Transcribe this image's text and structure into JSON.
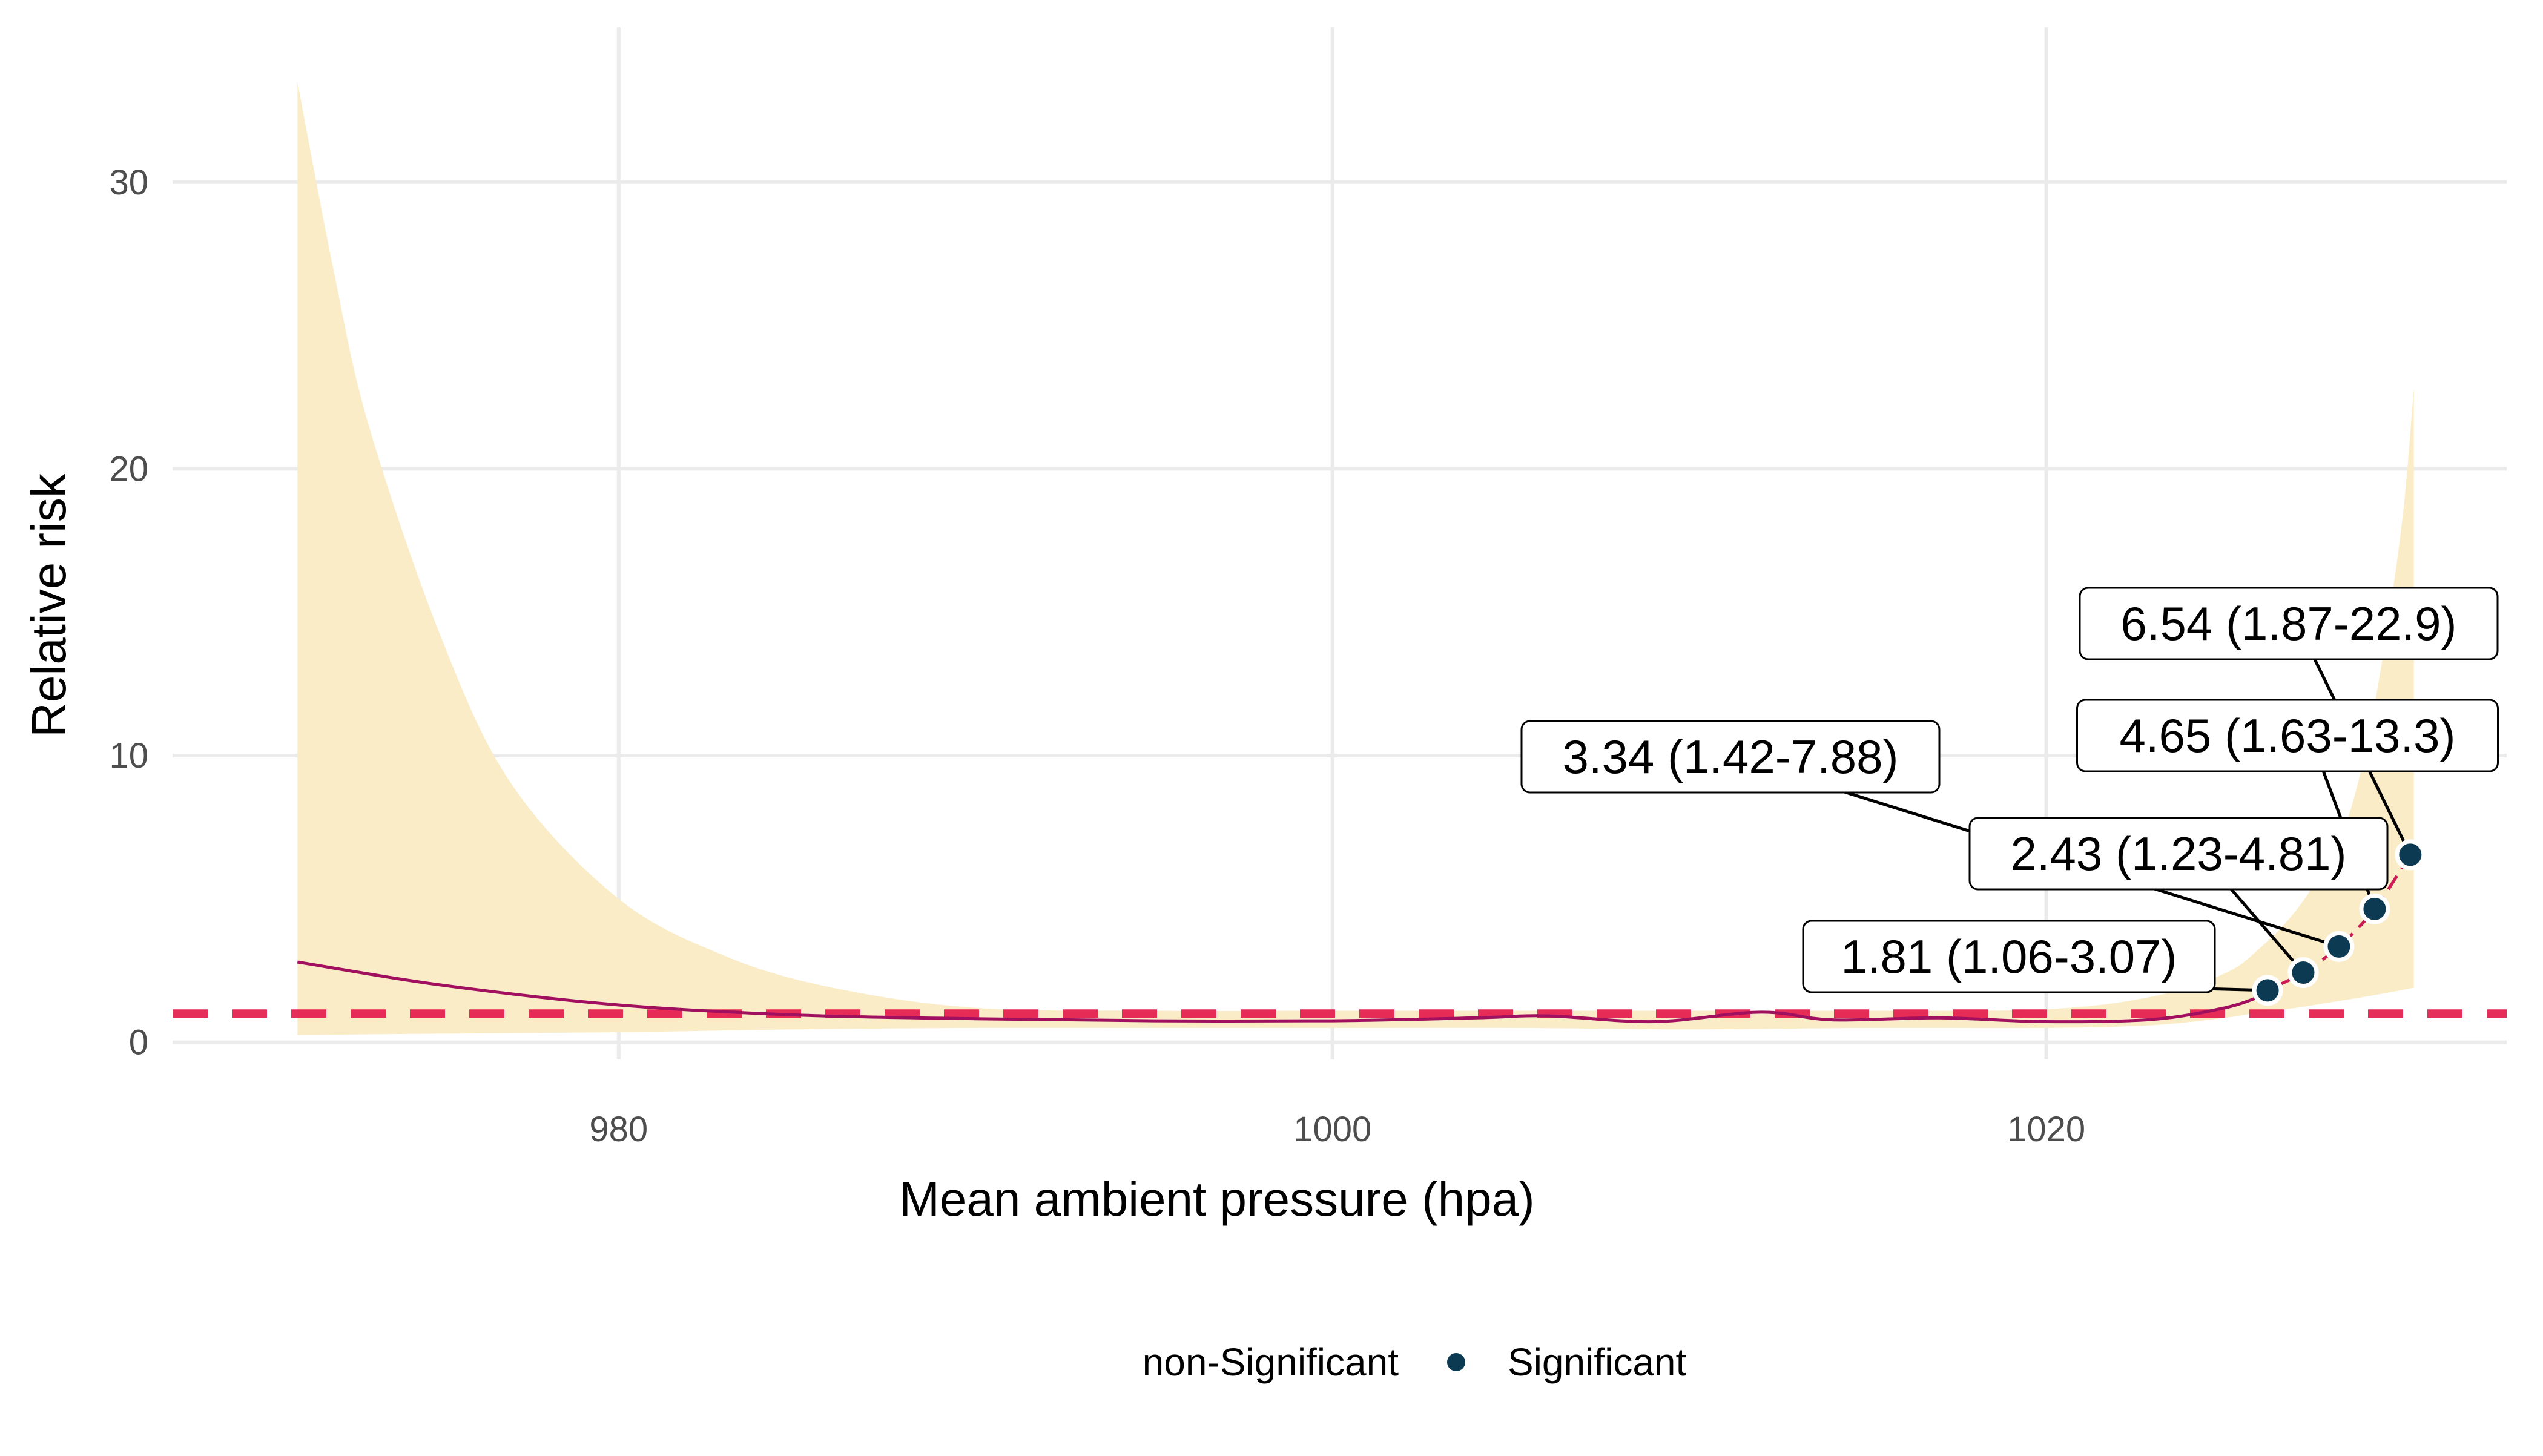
{
  "chart_data": {
    "type": "line",
    "title": "",
    "xlabel": "Mean ambient pressure (hpa)",
    "ylabel": "Relative risk",
    "xlim": [
      967.5,
      1032.9
    ],
    "ylim": [
      -0.6,
      35.4
    ],
    "x_ticks": [
      980,
      1000,
      1020
    ],
    "y_ticks": [
      0,
      10,
      20,
      30
    ],
    "grid": true,
    "reference_line": {
      "y": 1,
      "style": "dashed",
      "color": "#e4184a"
    },
    "colors": {
      "curve_nonsignificant": "#a0105f",
      "curve_significant": "#cc1a55",
      "ci_band": "#f9ecc7",
      "point": "#0b3a52",
      "grid": "#ebebeb"
    },
    "legend": {
      "placement": "bottom",
      "entries": [
        {
          "label": "non-Significant",
          "marker": false
        },
        {
          "label": "Significant",
          "marker": true
        }
      ]
    },
    "series": [
      {
        "role": "relative-risk-curve",
        "x": [
          971,
          975,
          980,
          985,
          990,
          995,
          1000,
          1004,
          1006,
          1009,
          1012,
          1014,
          1017,
          1020,
          1023,
          1025,
          1026
        ],
        "y": [
          2.8,
          2.0,
          1.3,
          0.95,
          0.82,
          0.75,
          0.75,
          0.85,
          0.92,
          0.72,
          1.05,
          0.78,
          0.85,
          0.72,
          0.8,
          1.2,
          1.6
        ]
      },
      {
        "role": "ci-upper",
        "x": [
          971,
          972,
          973,
          975,
          977,
          980,
          983,
          986,
          990,
          995,
          1000,
          1005,
          1010,
          1015,
          1020,
          1023,
          1025,
          1026,
          1027,
          1028,
          1028.5,
          1029,
          1029.5,
          1030,
          1030.3
        ],
        "y": [
          33.5,
          27,
          21.5,
          14.2,
          9.0,
          5.0,
          3.0,
          1.9,
          1.2,
          1.1,
          1.1,
          1.1,
          1.1,
          1.1,
          1.15,
          1.6,
          2.4,
          3.3,
          4.6,
          6.5,
          8.0,
          10.5,
          14.0,
          18.5,
          22.8
        ]
      },
      {
        "role": "ci-lower",
        "x": [
          971,
          975,
          980,
          985,
          990,
          995,
          1000,
          1005,
          1010,
          1015,
          1020,
          1023,
          1025,
          1026,
          1027,
          1028,
          1029,
          1030.3
        ],
        "y": [
          0.25,
          0.3,
          0.35,
          0.45,
          0.5,
          0.5,
          0.5,
          0.5,
          0.45,
          0.5,
          0.5,
          0.6,
          0.85,
          1.05,
          1.2,
          1.4,
          1.6,
          1.9
        ]
      }
    ],
    "significant_points": [
      {
        "x": 1026.2,
        "y": 1.81,
        "label": "1.81 (1.06-3.07)"
      },
      {
        "x": 1027.2,
        "y": 2.43,
        "label": "2.43 (1.23-4.81)"
      },
      {
        "x": 1028.2,
        "y": 3.34,
        "label": "3.34 (1.42-7.88)"
      },
      {
        "x": 1029.2,
        "y": 4.65,
        "label": "4.65 (1.63-13.3)"
      },
      {
        "x": 1030.2,
        "y": 6.54,
        "label": "6.54 (1.87-22.9)"
      }
    ]
  }
}
